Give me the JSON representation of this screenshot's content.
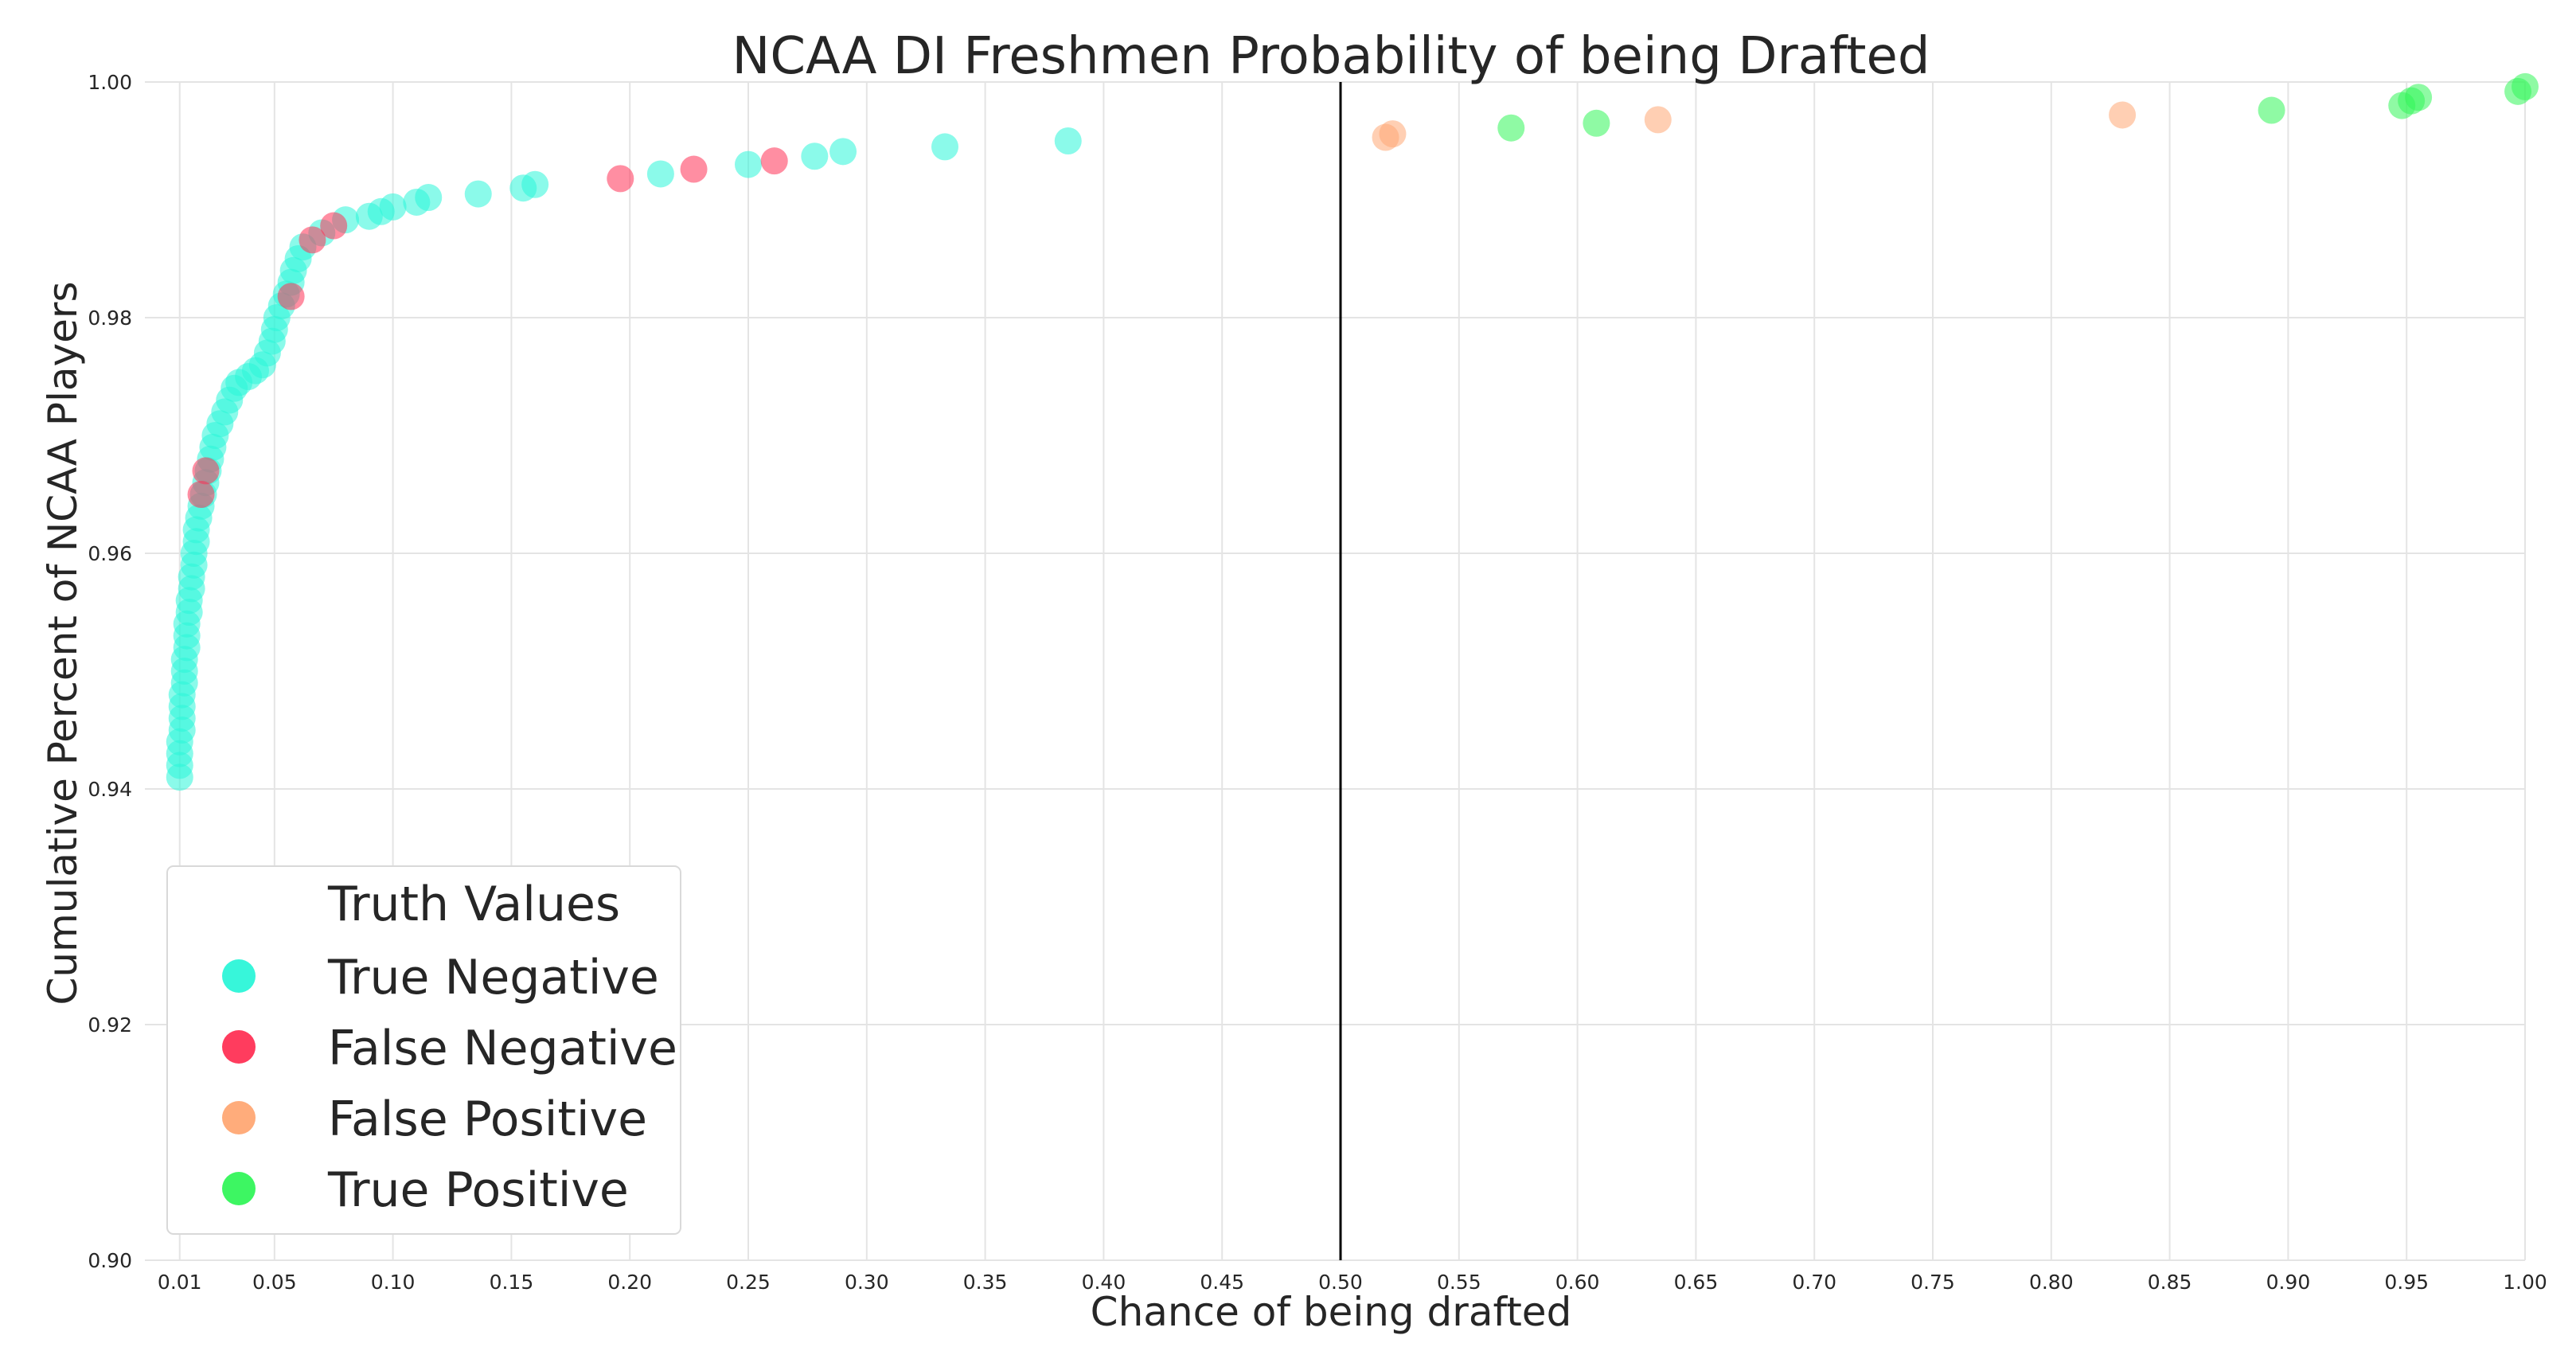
{
  "chart_data": {
    "type": "scatter",
    "title": "NCAA DI Freshmen Probability of being Drafted",
    "xlabel": "Chance of being drafted",
    "ylabel": "Cumulative Percent of NCAA Players",
    "xlim": [
      0.0,
      1.0
    ],
    "ylim": [
      0.9,
      1.0
    ],
    "xticks": [
      "0.01",
      "0.05",
      "0.10",
      "0.15",
      "0.20",
      "0.25",
      "0.30",
      "0.35",
      "0.40",
      "0.45",
      "0.50",
      "0.55",
      "0.60",
      "0.65",
      "0.70",
      "0.75",
      "0.80",
      "0.85",
      "0.90",
      "0.95",
      "1.00"
    ],
    "yticks": [
      "0.90",
      "0.92",
      "0.94",
      "0.96",
      "0.98",
      "1.00"
    ],
    "grid": true,
    "threshold_line_x": 0.5,
    "legend": {
      "title": "Truth Values",
      "placement": "lower-left",
      "entries": [
        "True Negative",
        "False Negative",
        "False Positive",
        "True Positive"
      ]
    },
    "series": [
      {
        "name": "True Negative",
        "color": "#2cf5d8",
        "points": [
          [
            0.01,
            0.941
          ],
          [
            0.01,
            0.942
          ],
          [
            0.01,
            0.943
          ],
          [
            0.01,
            0.944
          ],
          [
            0.011,
            0.945
          ],
          [
            0.011,
            0.946
          ],
          [
            0.011,
            0.947
          ],
          [
            0.011,
            0.948
          ],
          [
            0.012,
            0.949
          ],
          [
            0.012,
            0.95
          ],
          [
            0.012,
            0.951
          ],
          [
            0.013,
            0.952
          ],
          [
            0.013,
            0.953
          ],
          [
            0.013,
            0.954
          ],
          [
            0.014,
            0.955
          ],
          [
            0.014,
            0.956
          ],
          [
            0.015,
            0.957
          ],
          [
            0.015,
            0.958
          ],
          [
            0.016,
            0.959
          ],
          [
            0.016,
            0.96
          ],
          [
            0.017,
            0.961
          ],
          [
            0.017,
            0.962
          ],
          [
            0.018,
            0.963
          ],
          [
            0.019,
            0.964
          ],
          [
            0.02,
            0.965
          ],
          [
            0.021,
            0.966
          ],
          [
            0.022,
            0.967
          ],
          [
            0.023,
            0.968
          ],
          [
            0.024,
            0.969
          ],
          [
            0.025,
            0.97
          ],
          [
            0.027,
            0.971
          ],
          [
            0.029,
            0.972
          ],
          [
            0.031,
            0.973
          ],
          [
            0.033,
            0.974
          ],
          [
            0.035,
            0.9745
          ],
          [
            0.039,
            0.975
          ],
          [
            0.042,
            0.9755
          ],
          [
            0.045,
            0.976
          ],
          [
            0.047,
            0.977
          ],
          [
            0.049,
            0.978
          ],
          [
            0.05,
            0.979
          ],
          [
            0.051,
            0.98
          ],
          [
            0.053,
            0.981
          ],
          [
            0.055,
            0.982
          ],
          [
            0.057,
            0.983
          ],
          [
            0.058,
            0.984
          ],
          [
            0.06,
            0.985
          ],
          [
            0.062,
            0.986
          ],
          [
            0.07,
            0.9872
          ],
          [
            0.08,
            0.9883
          ],
          [
            0.09,
            0.9886
          ],
          [
            0.095,
            0.989
          ],
          [
            0.1,
            0.9894
          ],
          [
            0.11,
            0.9898
          ],
          [
            0.115,
            0.9902
          ],
          [
            0.136,
            0.9905
          ],
          [
            0.155,
            0.991
          ],
          [
            0.16,
            0.9913
          ],
          [
            0.213,
            0.9922
          ],
          [
            0.25,
            0.993
          ],
          [
            0.278,
            0.9937
          ],
          [
            0.29,
            0.9941
          ],
          [
            0.333,
            0.9945
          ],
          [
            0.385,
            0.995
          ]
        ]
      },
      {
        "name": "False Negative",
        "color": "#ff3155",
        "points": [
          [
            0.019,
            0.965
          ],
          [
            0.021,
            0.967
          ],
          [
            0.057,
            0.9818
          ],
          [
            0.066,
            0.9866
          ],
          [
            0.075,
            0.9878
          ],
          [
            0.196,
            0.9918
          ],
          [
            0.227,
            0.9926
          ],
          [
            0.261,
            0.9933
          ]
        ]
      },
      {
        "name": "False Positive",
        "color": "#ffa874",
        "points": [
          [
            0.519,
            0.9953
          ],
          [
            0.522,
            0.9956
          ],
          [
            0.634,
            0.9968
          ],
          [
            0.83,
            0.9972
          ]
        ]
      },
      {
        "name": "True Positive",
        "color": "#33f55a",
        "points": [
          [
            0.572,
            0.9961
          ],
          [
            0.608,
            0.9965
          ],
          [
            0.893,
            0.9976
          ],
          [
            0.948,
            0.998
          ],
          [
            0.952,
            0.9984
          ],
          [
            0.955,
            0.9987
          ],
          [
            0.997,
            0.9992
          ],
          [
            1.0,
            0.9996
          ]
        ]
      }
    ]
  }
}
